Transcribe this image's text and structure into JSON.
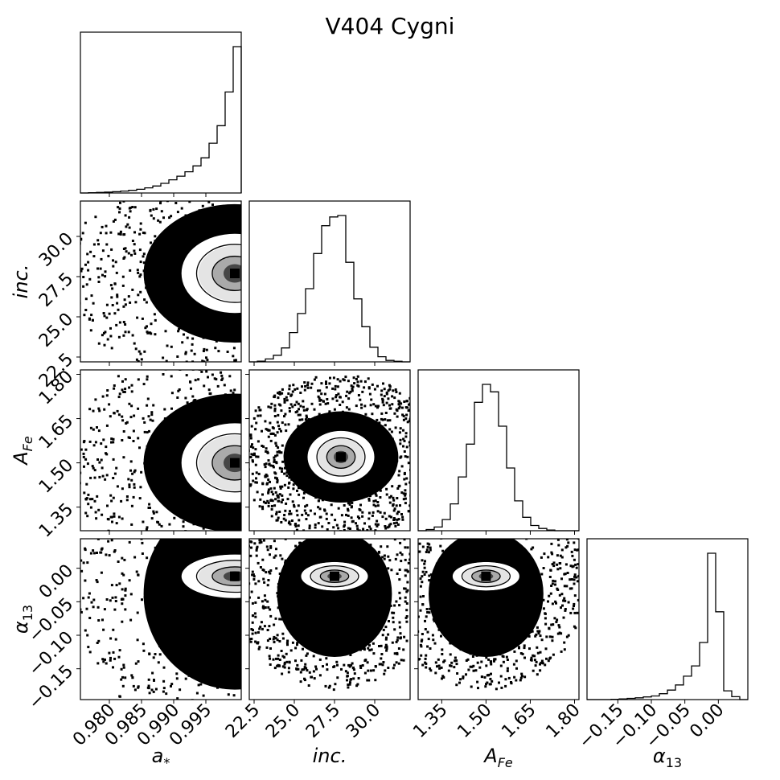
{
  "chart_data": {
    "type": "corner",
    "title": "V404 Cygni",
    "parameters": [
      {
        "key": "a",
        "label": "a",
        "label_sub": "*",
        "range": [
          0.9755,
          1.0005
        ],
        "ticks": [
          0.98,
          0.985,
          0.99,
          0.995
        ],
        "tick_labels": [
          "0.980",
          "0.985",
          "0.990",
          "0.995"
        ]
      },
      {
        "key": "inc",
        "label": "inc.",
        "label_sub": "",
        "range": [
          22.2,
          32.2
        ],
        "ticks": [
          22.5,
          25.0,
          27.5,
          30.0
        ],
        "tick_labels": [
          "22.5",
          "25.0",
          "27.5",
          "30.0"
        ]
      },
      {
        "key": "afe",
        "label": "A",
        "label_sub": "Fe",
        "range": [
          1.27,
          1.815
        ],
        "ticks": [
          1.35,
          1.5,
          1.65,
          1.8
        ],
        "tick_labels": [
          "1.35",
          "1.50",
          "1.65",
          "1.80"
        ]
      },
      {
        "key": "alpha",
        "label": "α",
        "label_sub": "13",
        "range": [
          -0.196,
          0.044
        ],
        "ticks": [
          -0.15,
          -0.1,
          -0.05,
          0.0
        ],
        "tick_labels": [
          "−0.15",
          "−0.10",
          "−0.05",
          "0.00"
        ]
      }
    ],
    "histograms": [
      {
        "param": "a",
        "bin_edges": [
          0.9755,
          0.97675,
          0.978,
          0.97925,
          0.9805,
          0.98175,
          0.983,
          0.98425,
          0.9855,
          0.98675,
          0.988,
          0.98925,
          0.9905,
          0.99175,
          0.993,
          0.99425,
          0.9955,
          0.99675,
          0.998,
          0.99925,
          1.0005
        ],
        "counts": [
          0.0,
          0.002,
          0.004,
          0.006,
          0.009,
          0.013,
          0.018,
          0.025,
          0.035,
          0.048,
          0.066,
          0.09,
          0.115,
          0.145,
          0.185,
          0.24,
          0.34,
          0.46,
          0.69,
          1.0
        ]
      },
      {
        "param": "inc",
        "bin_edges": [
          22.2,
          22.7,
          23.2,
          23.7,
          24.2,
          24.7,
          25.2,
          25.7,
          26.2,
          26.7,
          27.2,
          27.7,
          28.2,
          28.7,
          29.2,
          29.7,
          30.2,
          30.7,
          31.2,
          31.7,
          32.2
        ],
        "counts": [
          0.0,
          0.005,
          0.02,
          0.045,
          0.095,
          0.2,
          0.33,
          0.5,
          0.74,
          0.93,
          0.99,
          1.0,
          0.68,
          0.43,
          0.24,
          0.1,
          0.035,
          0.01,
          0.004,
          0.0
        ]
      },
      {
        "param": "afe",
        "bin_edges": [
          1.27,
          1.29725,
          1.3245,
          1.35175,
          1.379,
          1.40625,
          1.4335,
          1.46075,
          1.488,
          1.51525,
          1.5425,
          1.56975,
          1.597,
          1.62425,
          1.6515,
          1.67875,
          1.706,
          1.73325,
          1.7605,
          1.78775,
          1.815
        ],
        "counts": [
          0.0,
          0.008,
          0.025,
          0.075,
          0.18,
          0.36,
          0.58,
          0.86,
          0.98,
          0.93,
          0.7,
          0.42,
          0.2,
          0.09,
          0.035,
          0.015,
          0.005,
          0.0,
          0.0,
          0.0
        ]
      },
      {
        "param": "alpha",
        "bin_edges": [
          -0.196,
          -0.184,
          -0.172,
          -0.16,
          -0.148,
          -0.136,
          -0.124,
          -0.112,
          -0.1,
          -0.088,
          -0.076,
          -0.064,
          -0.052,
          -0.04,
          -0.028,
          -0.016,
          -0.004,
          0.008,
          0.02,
          0.032,
          0.044
        ],
        "counts": [
          0.0,
          0.0,
          0.0,
          0.002,
          0.005,
          0.008,
          0.012,
          0.018,
          0.025,
          0.04,
          0.065,
          0.1,
          0.16,
          0.23,
          0.39,
          1.0,
          0.6,
          0.06,
          0.02,
          0.0
        ]
      }
    ],
    "joint_peaks": [
      {
        "x": "a",
        "y": "inc",
        "x_peak": 0.9995,
        "y_peak": 27.7
      },
      {
        "x": "a",
        "y": "afe",
        "x_peak": 0.9995,
        "y_peak": 1.5
      },
      {
        "x": "inc",
        "y": "afe",
        "x_peak": 27.9,
        "y_peak": 1.52
      },
      {
        "x": "a",
        "y": "alpha",
        "x_peak": 0.9995,
        "y_peak": -0.012
      },
      {
        "x": "inc",
        "y": "alpha",
        "x_peak": 27.5,
        "y_peak": -0.012
      },
      {
        "x": "afe",
        "y": "alpha",
        "x_peak": 1.5,
        "y_peak": -0.012
      }
    ]
  }
}
